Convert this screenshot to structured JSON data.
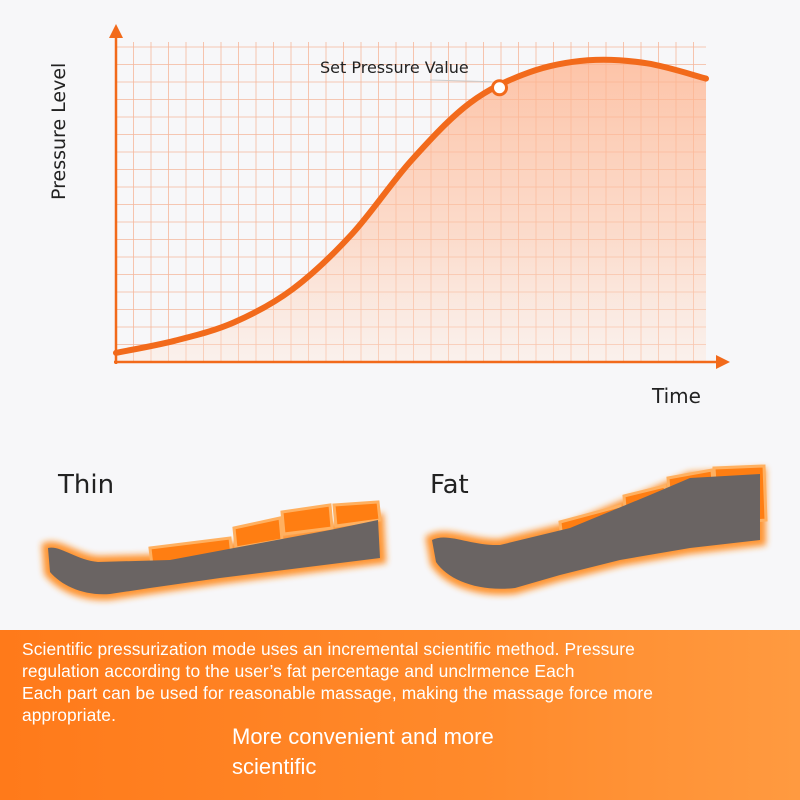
{
  "chart_data": {
    "type": "area",
    "title": "",
    "xlabel": "Time",
    "ylabel": "Pressure Level",
    "grid": true,
    "x": [
      0,
      1,
      2,
      3,
      4,
      5,
      6,
      7,
      8,
      9,
      10
    ],
    "values": [
      0.03,
      0.07,
      0.13,
      0.24,
      0.42,
      0.66,
      0.85,
      0.95,
      0.99,
      0.98,
      0.93
    ],
    "annotation": {
      "text": "Set Pressure Value",
      "x": 6.5,
      "y": 0.9
    },
    "ylim": [
      0,
      1.05
    ],
    "xlim": [
      0,
      10
    ]
  },
  "legs": {
    "thin_label": "Thin",
    "fat_label": "Fat"
  },
  "banner": {
    "line1": "Scientific pressurization mode uses an incremental scientific method. Pressure",
    "line2": "regulation according to the user’s fat percentage and unclrmence Each",
    "line3": "Each part can be used for reasonable massage, making the massage force more",
    "line4": "appropriate.",
    "sub1": "More convenient and more",
    "sub2": "scientific"
  },
  "colors": {
    "accent": "#f26a1b",
    "leg": "#6a6463",
    "leg_glow": "#ff8a1a",
    "banner": "#ff7d1f",
    "grid": "#f5b79b"
  }
}
